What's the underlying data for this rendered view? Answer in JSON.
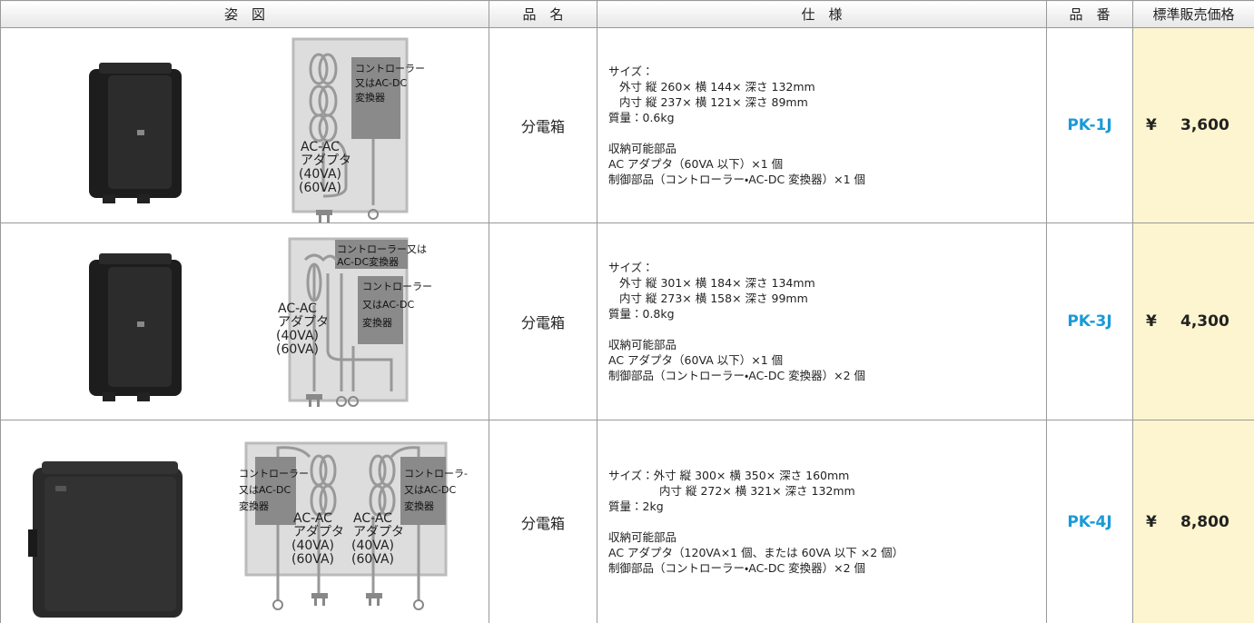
{
  "table": {
    "header": [
      "姿　図",
      "品　名",
      "仕　様",
      "品　番",
      "標準販売価格"
    ],
    "rows": [
      {
        "diagram_labels": [
          "コントローラー",
          "又はAC-DC",
          "変換器",
          "AC-AC",
          "アダプタ",
          "(40VA)",
          "(60VA)"
        ],
        "name": "分電箱",
        "spec": [
          [
            "サイズ：",
            "外寸 縦 260× 横 144× 深さ 132mm",
            "内寸 縦 237× 横 121× 深さ 89mm",
            "質量：0.6kg"
          ],
          [
            "収納可能部品",
            "AC アダプタ（60VA 以下）×1 個",
            "制御部品（コントローラー・AC-DC 変換器）×1 個"
          ]
        ],
        "model": "PK-1J",
        "currency": "¥",
        "price": "3,600"
      },
      {
        "diagram_labels": [
          "コントローラー又は",
          "AC-DC変換器",
          "コントローラー",
          "又はAC-DC",
          "変換器",
          "AC-AC",
          "アダプタ",
          "(40VA)",
          "(60VA)"
        ],
        "name": "分電箱",
        "spec": [
          [
            "サイズ：",
            "外寸 縦 301× 横 184× 深さ 134mm",
            "内寸 縦 273× 横 158× 深さ 99mm",
            "質量：0.8kg"
          ],
          [
            "収納可能部品",
            "AC アダプタ（60VA 以下）×1 個",
            "制御部品（コントローラー・AC-DC 変換器）×2 個"
          ]
        ],
        "model": "PK-3J",
        "currency": "¥",
        "price": "4,300"
      },
      {
        "diagram_labels": [
          "コントローラー",
          "又はAC-DC",
          "変換器",
          "AC-AC",
          "アダプタ",
          "(40VA)",
          "(60VA)",
          "AC-AC",
          "アダプタ",
          "(40VA)",
          "(60VA)",
          "コントローラ-",
          "又はAC-DC",
          "変換器"
        ],
        "name": "分電箱",
        "spec": [
          [
            "サイズ：外寸 縦 300× 横 350× 深さ 160mm",
            "内寸 縦 272× 横 321× 深さ 132mm",
            "質量：2kg"
          ],
          [
            "収納可能部品",
            "AC アダプタ（120VA×1 個、または 60VA 以下 ×2 個）",
            "制御部品（コントローラー・AC-DC 変換器）×2 個"
          ]
        ],
        "model": "PK-4J",
        "currency": "¥",
        "price": "8,800"
      }
    ]
  }
}
